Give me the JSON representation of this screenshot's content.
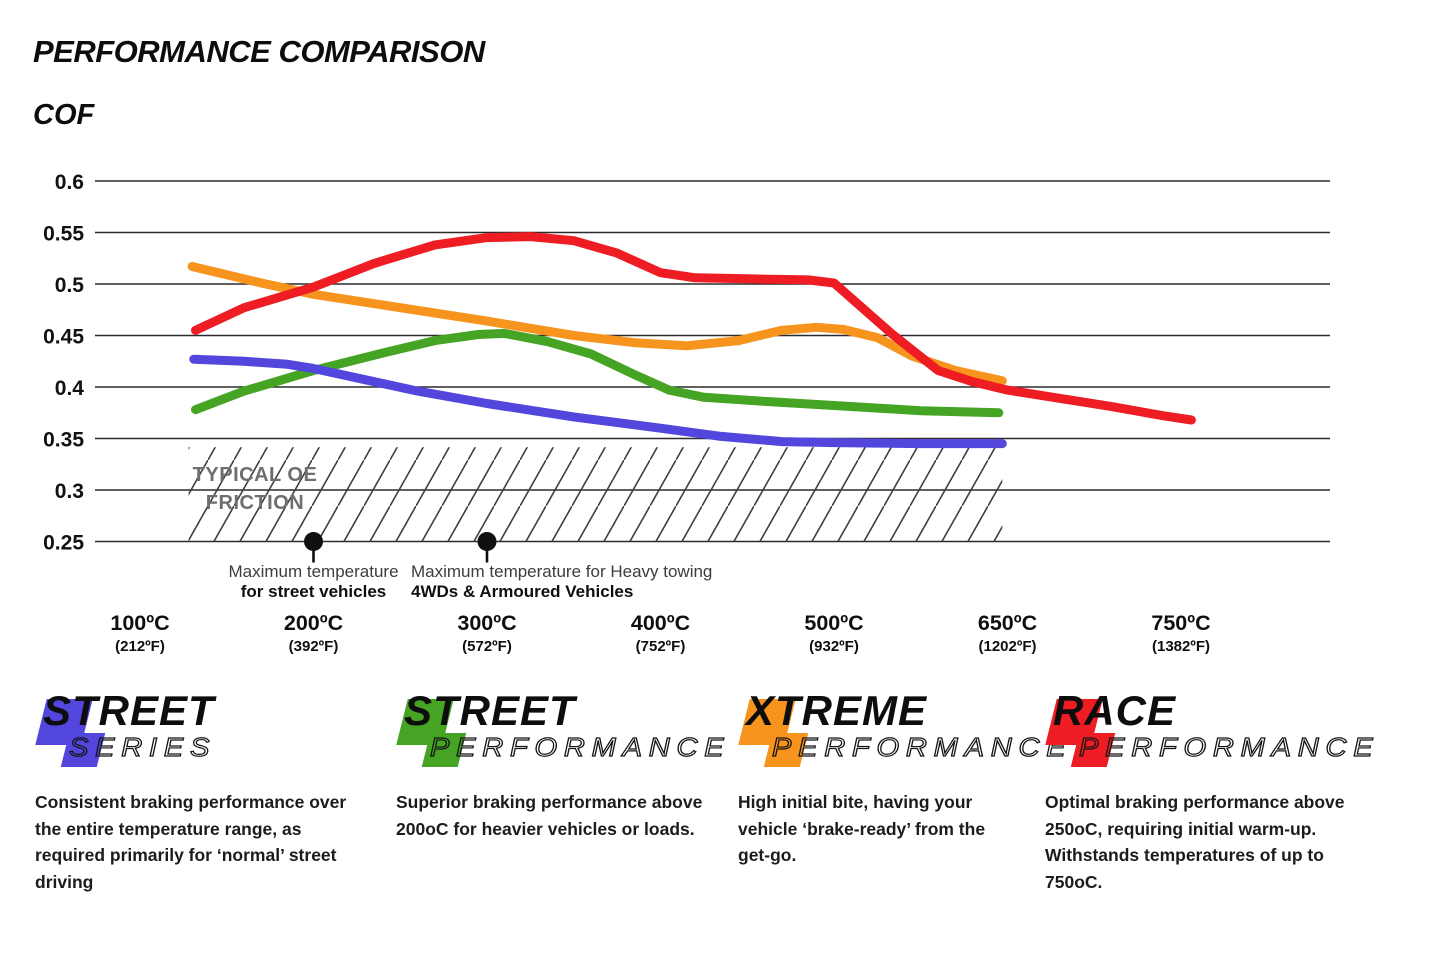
{
  "page": {
    "title": "PERFORMANCE COMPARISON",
    "cof": "COF"
  },
  "chart_data": {
    "type": "line",
    "title": "PERFORMANCE COMPARISON",
    "ylabel": "COF",
    "ylim": [
      0.25,
      0.6
    ],
    "grid": true,
    "y_ticks": [
      0.6,
      0.55,
      0.5,
      0.45,
      0.4,
      0.35,
      0.3,
      0.25
    ],
    "x_categories": [
      {
        "label": "100ºC",
        "sub": "(212ºF)"
      },
      {
        "label": "200ºC",
        "sub": "(392ºF)"
      },
      {
        "label": "300ºC",
        "sub": "(572ºF)"
      },
      {
        "label": "400ºC",
        "sub": "(752ºF)"
      },
      {
        "label": "500ºC",
        "sub": "(932ºF)"
      },
      {
        "label": "650ºC",
        "sub": "(1202ºF)"
      },
      {
        "label": "750ºC",
        "sub": "(1382ºF)"
      }
    ],
    "series": [
      {
        "id": "street-performance",
        "name": "Street Performance",
        "color": "#46a424",
        "points": [
          [
            0.32,
            0.378
          ],
          [
            0.6,
            0.396
          ],
          [
            1.0,
            0.416
          ],
          [
            1.4,
            0.433
          ],
          [
            1.7,
            0.445
          ],
          [
            1.95,
            0.451
          ],
          [
            2.1,
            0.452
          ],
          [
            2.35,
            0.444
          ],
          [
            2.6,
            0.432
          ],
          [
            2.85,
            0.412
          ],
          [
            3.05,
            0.397
          ],
          [
            3.25,
            0.39
          ],
          [
            3.6,
            0.386
          ],
          [
            4.0,
            0.382
          ],
          [
            4.5,
            0.377
          ],
          [
            4.95,
            0.375
          ]
        ]
      },
      {
        "id": "street-series",
        "name": "Street Series",
        "color": "#5246dd",
        "points": [
          [
            0.31,
            0.427
          ],
          [
            0.6,
            0.425
          ],
          [
            0.85,
            0.422
          ],
          [
            1.0,
            0.418
          ],
          [
            1.3,
            0.407
          ],
          [
            1.6,
            0.396
          ],
          [
            2.0,
            0.384
          ],
          [
            2.5,
            0.371
          ],
          [
            3.0,
            0.36
          ],
          [
            3.35,
            0.352
          ],
          [
            3.7,
            0.347
          ],
          [
            4.0,
            0.346
          ],
          [
            4.5,
            0.345
          ],
          [
            4.97,
            0.345
          ]
        ]
      },
      {
        "id": "xtreme-performance",
        "name": "Xtreme Performance",
        "color": "#f7941e",
        "points": [
          [
            0.3,
            0.517
          ],
          [
            0.7,
            0.501
          ],
          [
            1.0,
            0.49
          ],
          [
            1.5,
            0.477
          ],
          [
            2.0,
            0.464
          ],
          [
            2.5,
            0.45
          ],
          [
            2.85,
            0.443
          ],
          [
            3.15,
            0.44
          ],
          [
            3.45,
            0.445
          ],
          [
            3.7,
            0.455
          ],
          [
            3.9,
            0.458
          ],
          [
            4.05,
            0.456
          ],
          [
            4.25,
            0.448
          ],
          [
            4.45,
            0.43
          ],
          [
            4.7,
            0.416
          ],
          [
            4.97,
            0.406
          ]
        ]
      },
      {
        "id": "race-performance",
        "name": "Race Performance",
        "color": "#ee1c23",
        "points": [
          [
            0.32,
            0.455
          ],
          [
            0.6,
            0.477
          ],
          [
            1.0,
            0.497
          ],
          [
            1.35,
            0.52
          ],
          [
            1.7,
            0.538
          ],
          [
            2.0,
            0.545
          ],
          [
            2.25,
            0.546
          ],
          [
            2.5,
            0.542
          ],
          [
            2.75,
            0.53
          ],
          [
            3.0,
            0.511
          ],
          [
            3.2,
            0.506
          ],
          [
            3.5,
            0.505
          ],
          [
            3.85,
            0.504
          ],
          [
            4.0,
            0.501
          ],
          [
            4.33,
            0.452
          ],
          [
            4.6,
            0.416
          ],
          [
            4.8,
            0.405
          ],
          [
            5.0,
            0.397
          ],
          [
            5.3,
            0.389
          ],
          [
            5.6,
            0.381
          ],
          [
            5.9,
            0.372
          ],
          [
            6.06,
            0.368
          ]
        ]
      }
    ],
    "oe_band": {
      "label_line1": "TYPICAL OE",
      "label_line2": "FRICTION",
      "cof_top": 0.3415,
      "cof_bottom": 0.25,
      "x_start_cat": 0.28,
      "x_end_cat": 4.97
    },
    "annotations": [
      {
        "marker_cat": 1,
        "marker_y": 0.25,
        "align": "center",
        "lines": [
          "Maximum temperature",
          "for street vehicles"
        ]
      },
      {
        "marker_cat": 2,
        "marker_y": 0.25,
        "align": "left",
        "text_cat": 1.562,
        "lines": [
          "Maximum temperature for Heavy towing",
          "4WDs & Armoured Vehicles"
        ]
      }
    ]
  },
  "legend": [
    {
      "word1": "STREET",
      "word2": "SERIES",
      "color": "#5246dd",
      "description": "Consistent braking performance over the entire temperature range, as required primarily for ‘normal’ street driving"
    },
    {
      "word1": "STREET",
      "word2": "PERFORMANCE",
      "color": "#46a424",
      "description": "Superior braking performance above 200oC for heavier vehicles or loads."
    },
    {
      "word1": "XTREME",
      "word2": "PERFORMANCE",
      "color": "#f7941e",
      "description": "High initial bite, having your vehicle ‘brake-ready’ from the get-go."
    },
    {
      "word1": "RACE",
      "word2": "PERFORMANCE",
      "color": "#ee1c23",
      "description": "Optimal braking performance above 250oC, requiring initial warm-up. Withstands temperatures of up to 750oC."
    }
  ]
}
